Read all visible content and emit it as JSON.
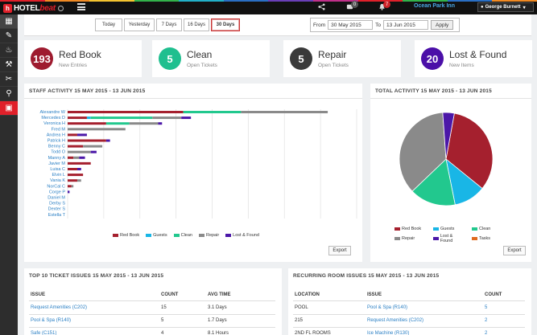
{
  "topbar": {
    "logo_mark": "h",
    "logo_text_a": "HOTEL",
    "logo_text_b": "beat",
    "share_icon": "share-icon",
    "messages_count": "0",
    "alerts_count": "7",
    "hotel_name": "Ocean Park Inn",
    "user_name": "George Burnett",
    "rainbow": [
      "#e0202a",
      "#f08a24",
      "#f4c430",
      "#32b24a",
      "#22b0c8",
      "#2a6fc4",
      "#6a3fb8",
      "#c0308a",
      "#e0202a",
      "#32b24a",
      "#2a6fc4",
      "#f08a24"
    ]
  },
  "sidebar": {
    "items": [
      {
        "icon": "dashboard-icon",
        "glyph": "▦"
      },
      {
        "icon": "logbook-icon",
        "glyph": "✎"
      },
      {
        "icon": "cleaning-icon",
        "glyph": "♨"
      },
      {
        "icon": "maintenance-icon",
        "glyph": "⚒"
      },
      {
        "icon": "repair-icon",
        "glyph": "✂"
      },
      {
        "icon": "lost-found-icon",
        "glyph": "⚲"
      },
      {
        "icon": "reports-icon",
        "glyph": "▣"
      }
    ]
  },
  "filters": {
    "ranges": [
      "Today",
      "Yesterday",
      "7 Days",
      "16 Days",
      "30 Days"
    ],
    "active_index": 4,
    "from_label": "From",
    "from_value": "30 May 2015",
    "to_label": "To",
    "to_value": "13 Jun 2015",
    "apply_label": "Apply"
  },
  "stats": [
    {
      "count": "193",
      "title": "Red Book",
      "sub": "New Entries",
      "color": "#9e1b2f"
    },
    {
      "count": "5",
      "title": "Clean",
      "sub": "Open Tickets",
      "color": "#1fbf8f"
    },
    {
      "count": "5",
      "title": "Repair",
      "sub": "Open Tickets",
      "color": "#3a3a3a"
    },
    {
      "count": "20",
      "title": "Lost & Found",
      "sub": "New Items",
      "color": "#4b0fa8"
    }
  ],
  "staff_panel": {
    "title": "STAFF ACTIVITY 15 MAY 2015 - 13 JUN 2015",
    "export_label": "Export"
  },
  "total_panel": {
    "title": "TOTAL ACTIVITY 15 MAY 2015 - 13 JUN 2015",
    "export_label": "Export"
  },
  "series_colors": {
    "Red Book": "#a5202e",
    "Guests": "#19b6e6",
    "Clean": "#22c88e",
    "Repair": "#8a8a8a",
    "Lost & Found": "#4b17a8",
    "Tasks": "#e06a1e"
  },
  "chart_data": [
    {
      "type": "bar",
      "orientation": "horizontal",
      "stacked": true,
      "categories": [
        "Alexandre W",
        "Mercedes D",
        "Veronica H",
        "Fred M",
        "Andrea H",
        "Patrick H",
        "Benny C",
        "Todd O",
        "Manny A",
        "Javier M",
        "Luisa C",
        "Elvin L",
        "Vania K",
        "NorCal C",
        "Corge P",
        "Daniel M",
        "Derby S",
        "Dexter S",
        "Estella T"
      ],
      "series": [
        {
          "name": "Red Book",
          "values": [
            60,
            10,
            20,
            0,
            5,
            20,
            8,
            0,
            3,
            12,
            5,
            8,
            5,
            2,
            0,
            0,
            0,
            0,
            0
          ]
        },
        {
          "name": "Guests",
          "values": [
            0,
            2,
            0,
            0,
            0,
            0,
            0,
            0,
            0,
            0,
            0,
            0,
            0,
            0,
            0,
            0,
            0,
            0,
            0
          ]
        },
        {
          "name": "Clean",
          "values": [
            30,
            32,
            12,
            0,
            0,
            0,
            0,
            0,
            0,
            0,
            0,
            0,
            0,
            0,
            0,
            0,
            0,
            0,
            0
          ]
        },
        {
          "name": "Repair",
          "values": [
            45,
            15,
            15,
            30,
            0,
            0,
            10,
            12,
            3,
            0,
            0,
            0,
            2,
            1,
            0,
            0,
            0,
            0,
            0
          ]
        },
        {
          "name": "Lost & Found",
          "values": [
            0,
            5,
            2,
            0,
            5,
            2,
            0,
            3,
            3,
            0,
            2,
            0,
            0,
            0,
            1,
            0,
            0,
            0,
            0
          ]
        }
      ],
      "xlim": [
        0,
        150
      ],
      "grid": true,
      "legend_position": "bottom"
    },
    {
      "type": "pie",
      "labels": [
        "Red Book",
        "Guests",
        "Clean",
        "Repair",
        "Lost & Found",
        "Tasks"
      ],
      "values": [
        33,
        11,
        16,
        36,
        4,
        0
      ],
      "legend_position": "bottom"
    }
  ],
  "top_issues": {
    "title": "TOP 10 TICKET ISSUES 15 MAY 2015 - 13 JUN 2015",
    "headers": [
      "ISSUE",
      "COUNT",
      "AVG TIME"
    ],
    "rows": [
      [
        "Request Amenities (C202)",
        "15",
        "3.1 Days"
      ],
      [
        "Pool & Spa (R140)",
        "5",
        "1.7 Days"
      ],
      [
        "Safe (C151)",
        "4",
        "8.1 Hours"
      ]
    ]
  },
  "recurring": {
    "title": "RECURRING ROOM ISSUES 15 MAY 2015 - 13 JUN 2015",
    "headers": [
      "LOCATION",
      "ISSUE",
      "COUNT"
    ],
    "rows": [
      [
        "POOL",
        "Pool & Spa (R140)",
        "5"
      ],
      [
        "215",
        "Request Amenities (C202)",
        "2"
      ],
      [
        "2ND FL ROOMS",
        "Ice Machine (R130)",
        "2"
      ]
    ]
  }
}
